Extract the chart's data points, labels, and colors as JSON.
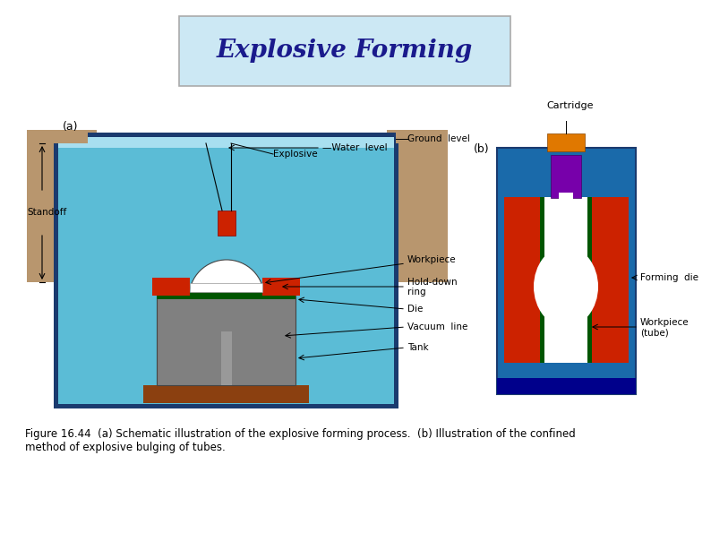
{
  "title": "Explosive Forming",
  "title_fontsize": 20,
  "title_color": "#1a1a8c",
  "title_box_color": "#cce8f4",
  "caption_line1": "Figure 16.44  (a) Schematic illustration of the explosive forming process.  (b) Illustration of the confined",
  "caption_line2": "method of explosive bulging of tubes.",
  "caption_fontsize": 8.5,
  "bg_color": "#ffffff",
  "colors": {
    "water": "#5bbcd6",
    "ground": "#b8966e",
    "dark_border": "#1a3a6e",
    "explosive_red": "#cc2200",
    "die_gray": "#808080",
    "die_dark": "#444444",
    "hold_ring_red": "#cc2200",
    "green_strip": "#005500",
    "tank_base": "#8b4010",
    "cartridge_orange": "#e07800",
    "cartridge_purple": "#7700aa",
    "forming_die_red": "#cc2200",
    "navy_base": "#00008b",
    "blue_bg": "#1a6aaa"
  }
}
